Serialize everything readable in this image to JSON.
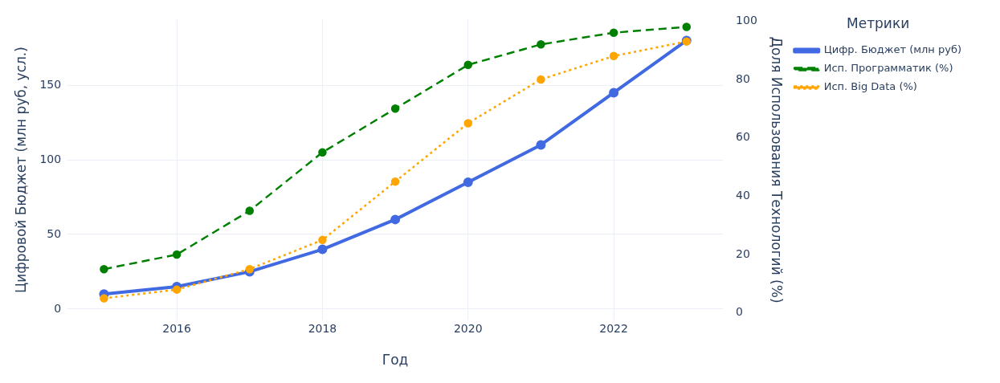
{
  "chart_data": {
    "type": "line",
    "xlabel": "Год",
    "ylabel": "Цифровой Бюджет (млн руб, усл.)",
    "y2label": "Доля Использования Технологий (%)",
    "legend_title": "Метрики",
    "x": [
      2015,
      2016,
      2017,
      2018,
      2019,
      2020,
      2021,
      2022,
      2023
    ],
    "series": [
      {
        "name": "Цифр. Бюджет (млн руб)",
        "color": "#4169e1",
        "values": [
          10,
          15,
          25,
          40,
          60,
          85,
          110,
          145,
          180
        ],
        "line_style": "solid"
      },
      {
        "name": "Исп. Программатик (%)",
        "color": "#008000",
        "values": [
          15,
          20,
          35,
          55,
          70,
          85,
          92,
          96,
          98
        ],
        "axis": "y2",
        "line_style": "dashed"
      },
      {
        "name": "Исп. Big Data (%)",
        "color": "#ffa500",
        "values": [
          5,
          8,
          15,
          25,
          45,
          65,
          80,
          88,
          93
        ],
        "axis": "y2",
        "line_style": "dotted"
      }
    ],
    "xlim": [
      2014.5,
      2023.5
    ],
    "xticks": [
      2016,
      2018,
      2020,
      2022
    ],
    "ylim": [
      -7.5,
      194
    ],
    "yticks": [
      0,
      50,
      100,
      150
    ],
    "y2lim": [
      -2.5,
      100.5
    ],
    "y2ticks": [
      0,
      20,
      40,
      60,
      80,
      100
    ],
    "grid": true,
    "legend": "top right",
    "marker": "circle"
  }
}
